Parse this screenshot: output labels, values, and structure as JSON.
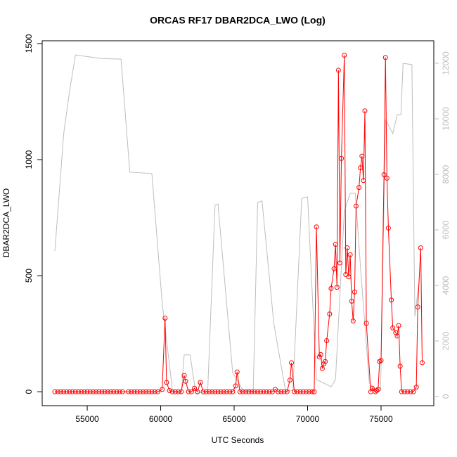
{
  "chart_data": {
    "type": "line",
    "title": "ORCAS RF17 DBAR2DCA_LWO (Log)",
    "x_label": "UTC Seconds",
    "y_label": "DBAR2DCA_LWO",
    "xlim": [
      51935,
      78590
    ],
    "xticks": [
      55000,
      60000,
      65000,
      70000,
      75000
    ],
    "ylim": [
      -60,
      1512
    ],
    "yticks": [
      0,
      500,
      1000,
      1500
    ],
    "y2lim": [
      -330,
      12810
    ],
    "y2ticks": [
      0,
      2000,
      4000,
      6000,
      8000,
      10000,
      12000
    ],
    "series": [
      {
        "color": "#ff0000",
        "markers": true,
        "x": [
          52800,
          53000,
          53200,
          53400,
          53600,
          53800,
          54000,
          54200,
          54400,
          54600,
          54800,
          55000,
          55200,
          55400,
          55600,
          55800,
          56000,
          56200,
          56400,
          56600,
          56800,
          57000,
          57200,
          57400,
          57800,
          58000,
          58200,
          58400,
          58600,
          58800,
          59000,
          59200,
          59400,
          59600,
          59800,
          60100,
          60300,
          60400,
          60600,
          60800,
          61000,
          61200,
          61400,
          61600,
          61700,
          61900,
          62100,
          62300,
          62500,
          62700,
          62900,
          63100,
          63300,
          63500,
          63700,
          63900,
          64100,
          64300,
          64500,
          64700,
          64900,
          65100,
          65200,
          65400,
          65600,
          65800,
          66000,
          66200,
          66400,
          66600,
          66800,
          67000,
          67200,
          67400,
          67600,
          67800,
          68000,
          68200,
          68400,
          68600,
          68800,
          68900,
          69100,
          69300,
          69500,
          69700,
          69900,
          70100,
          70300,
          70450,
          70600,
          70800,
          70900,
          71000,
          71100,
          71200,
          71300,
          71500,
          71600,
          71800,
          71900,
          72000,
          72100,
          72200,
          72300,
          72500,
          72600,
          72700,
          72800,
          72900,
          73000,
          73100,
          73200,
          73300,
          73500,
          73600,
          73700,
          73800,
          73900,
          74000,
          74300,
          74400,
          74600,
          74700,
          74800,
          74900,
          75000,
          75200,
          75300,
          75400,
          75500,
          75700,
          75800,
          76000,
          76100,
          76200,
          76300,
          76400,
          76600,
          76800,
          77000,
          77200,
          77400,
          77500,
          77700,
          77800
        ],
        "values": [
          0,
          0,
          0,
          0,
          0,
          0,
          0,
          0,
          0,
          0,
          0,
          0,
          0,
          0,
          0,
          0,
          0,
          0,
          0,
          0,
          0,
          0,
          0,
          0,
          0,
          0,
          0,
          0,
          0,
          0,
          0,
          0,
          0,
          0,
          0,
          10,
          317,
          40,
          5,
          0,
          0,
          0,
          0,
          70,
          45,
          0,
          0,
          15,
          0,
          40,
          0,
          0,
          0,
          0,
          0,
          0,
          0,
          0,
          0,
          0,
          0,
          25,
          85,
          0,
          0,
          0,
          0,
          0,
          0,
          0,
          0,
          0,
          0,
          0,
          0,
          10,
          0,
          0,
          0,
          0,
          50,
          125,
          0,
          0,
          0,
          0,
          0,
          0,
          0,
          0,
          710,
          150,
          160,
          100,
          120,
          130,
          220,
          335,
          445,
          530,
          635,
          450,
          1385,
          555,
          1005,
          1450,
          505,
          620,
          495,
          590,
          390,
          305,
          430,
          800,
          880,
          965,
          1015,
          910,
          1210,
          295,
          0,
          15,
          0,
          5,
          10,
          130,
          135,
          935,
          1440,
          920,
          705,
          395,
          275,
          255,
          240,
          285,
          110,
          0,
          0,
          0,
          0,
          0,
          20,
          365,
          620,
          125
        ]
      },
      {
        "color": "#bebebe",
        "axis": "y2",
        "x": [
          52800,
          53400,
          53800,
          54200,
          56000,
          57300,
          57900,
          59400,
          60100,
          60800,
          61400,
          61600,
          62000,
          62400,
          63200,
          63700,
          63900,
          64900,
          65600,
          66300,
          66600,
          66900,
          67700,
          68500,
          69000,
          69600,
          70000,
          70600,
          71600,
          71900,
          72300,
          72500,
          72900,
          73250,
          73600,
          74200,
          74600,
          74970,
          75300,
          75800,
          76100,
          76350,
          76500,
          77100,
          77300,
          77600
        ],
        "values": [
          5240,
          9470,
          11000,
          12300,
          12170,
          12150,
          8080,
          8030,
          3390,
          230,
          100,
          1500,
          1500,
          100,
          200,
          6890,
          6940,
          860,
          230,
          200,
          6990,
          7040,
          2630,
          200,
          230,
          7140,
          7190,
          610,
          350,
          610,
          4660,
          6680,
          7320,
          7320,
          4660,
          480,
          230,
          230,
          9970,
          9470,
          10150,
          10150,
          12000,
          11950,
          2890,
          4200
        ]
      }
    ]
  }
}
